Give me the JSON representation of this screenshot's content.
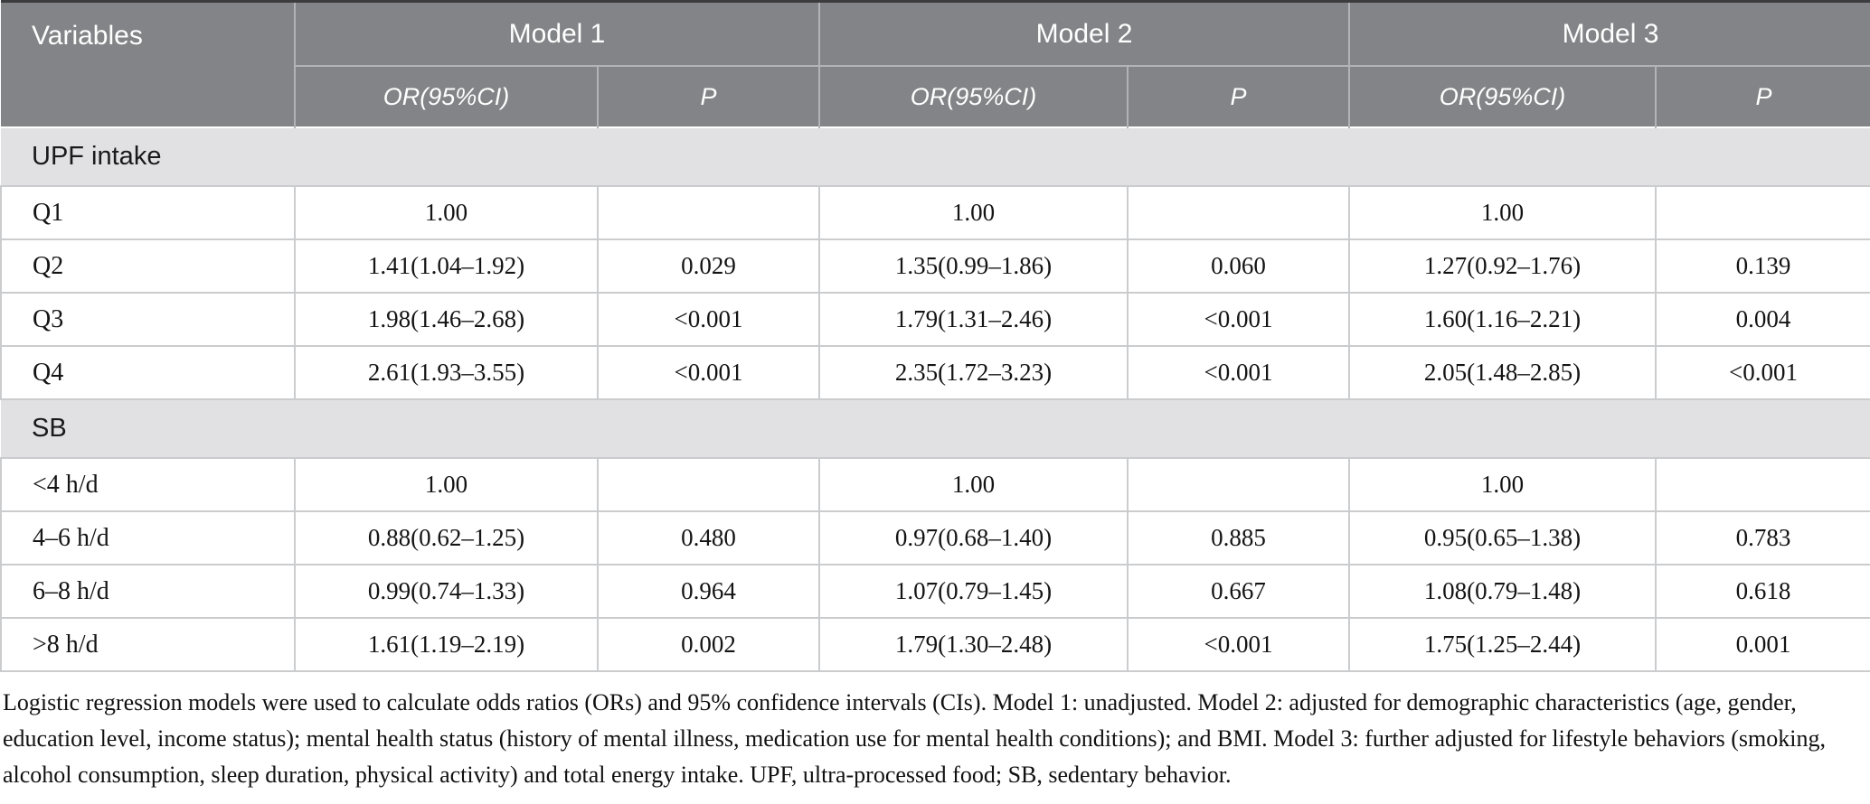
{
  "table": {
    "variables_header": "Variables",
    "models": [
      {
        "name": "Model 1",
        "or_header": "OR(95%CI)",
        "p_header": "P"
      },
      {
        "name": "Model 2",
        "or_header": "OR(95%CI)",
        "p_header": "P"
      },
      {
        "name": "Model 3",
        "or_header": "OR(95%CI)",
        "p_header": "P"
      }
    ],
    "sections": [
      {
        "label": "UPF intake",
        "rows": [
          {
            "label": "Q1",
            "cells": [
              "1.00",
              "",
              "1.00",
              "",
              "1.00",
              ""
            ]
          },
          {
            "label": "Q2",
            "cells": [
              "1.41(1.04–1.92)",
              "0.029",
              "1.35(0.99–1.86)",
              "0.060",
              "1.27(0.92–1.76)",
              "0.139"
            ]
          },
          {
            "label": "Q3",
            "cells": [
              "1.98(1.46–2.68)",
              "<0.001",
              "1.79(1.31–2.46)",
              "<0.001",
              "1.60(1.16–2.21)",
              "0.004"
            ]
          },
          {
            "label": "Q4",
            "cells": [
              "2.61(1.93–3.55)",
              "<0.001",
              "2.35(1.72–3.23)",
              "<0.001",
              "2.05(1.48–2.85)",
              "<0.001"
            ]
          }
        ]
      },
      {
        "label": "SB",
        "rows": [
          {
            "label": "<4 h/d",
            "cells": [
              "1.00",
              "",
              "1.00",
              "",
              "1.00",
              ""
            ]
          },
          {
            "label": "4–6 h/d",
            "cells": [
              "0.88(0.62–1.25)",
              "0.480",
              "0.97(0.68–1.40)",
              "0.885",
              "0.95(0.65–1.38)",
              "0.783"
            ]
          },
          {
            "label": "6–8 h/d",
            "cells": [
              "0.99(0.74–1.33)",
              "0.964",
              "1.07(0.79–1.45)",
              "0.667",
              "1.08(0.79–1.48)",
              "0.618"
            ]
          },
          {
            "label": ">8 h/d",
            "cells": [
              "1.61(1.19–2.19)",
              "0.002",
              "1.79(1.30–2.48)",
              "<0.001",
              "1.75(1.25–2.44)",
              "0.001"
            ]
          }
        ]
      }
    ],
    "footnote": "Logistic regression models were used to calculate odds ratios (ORs) and 95% confidence intervals (CIs). Model 1: unadjusted. Model 2: adjusted for demographic characteristics (age, gender, education level, income status); mental health status (history of mental illness, medication use for mental health conditions); and BMI. Model 3: further adjusted for lifestyle behaviors (smoking, alcohol consumption, sleep duration, physical activity) and total energy intake. UPF, ultra-processed food; SB, sedentary behavior."
  },
  "colors": {
    "header_bg": "#828487",
    "header_text": "#ffffff",
    "section_bg": "#e1e0e2",
    "grid_line": "#cbccce",
    "header_divider": "#b2b3b6",
    "top_rule": "#3c3c3e",
    "body_text": "#141414"
  }
}
